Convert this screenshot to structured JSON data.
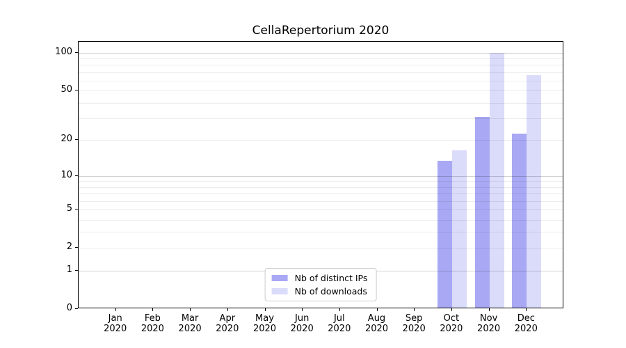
{
  "chart_data": {
    "type": "bar",
    "title": "CellaRepertorium 2020",
    "months": [
      "Jan",
      "Feb",
      "Mar",
      "Apr",
      "May",
      "Jun",
      "Jul",
      "Aug",
      "Sep",
      "Oct",
      "Nov",
      "Dec"
    ],
    "year": "2020",
    "series": [
      {
        "name": "Nb of distinct IPs",
        "color": "#a8a8f4",
        "values": [
          0,
          0,
          0,
          0,
          0,
          0,
          0,
          0,
          0,
          13,
          30,
          22
        ]
      },
      {
        "name": "Nb of downloads",
        "color": "#dbdbfa",
        "values": [
          0,
          0,
          0,
          0,
          0,
          0,
          0,
          0,
          0,
          16,
          97,
          65
        ]
      }
    ],
    "yscale": "log1p",
    "ylim": [
      0,
      122
    ],
    "ytick_values": [
      0,
      1,
      2,
      5,
      10,
      20,
      50,
      100
    ],
    "grid_major_values": [
      1,
      10,
      100
    ],
    "grid_minor_values": [
      2,
      3,
      4,
      5,
      6,
      7,
      8,
      9,
      20,
      30,
      40,
      50,
      60,
      70,
      80,
      90
    ],
    "legend_position": "lower center",
    "xlabel": "",
    "ylabel": ""
  },
  "colors": {
    "background": "#ffffff",
    "axis_frame": "#000000",
    "bar_distinct_ips": "#a8a8f4",
    "bar_downloads": "#dbdbfa",
    "legend_border": "#cccccc"
  }
}
